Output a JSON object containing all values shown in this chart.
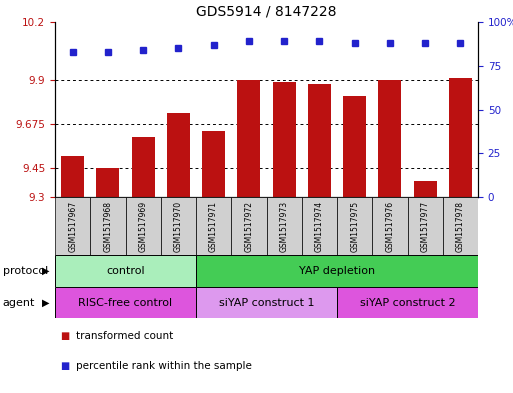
{
  "title": "GDS5914 / 8147228",
  "samples": [
    "GSM1517967",
    "GSM1517968",
    "GSM1517969",
    "GSM1517970",
    "GSM1517971",
    "GSM1517972",
    "GSM1517973",
    "GSM1517974",
    "GSM1517975",
    "GSM1517976",
    "GSM1517977",
    "GSM1517978"
  ],
  "bar_values": [
    9.51,
    9.45,
    9.61,
    9.73,
    9.64,
    9.9,
    9.89,
    9.88,
    9.82,
    9.9,
    9.38,
    9.91
  ],
  "dot_values": [
    83,
    83,
    84,
    85,
    87,
    89,
    89,
    89,
    88,
    88,
    88,
    88
  ],
  "ylim_left": [
    9.3,
    10.2
  ],
  "ylim_right": [
    0,
    100
  ],
  "yticks_left": [
    9.3,
    9.45,
    9.675,
    9.9,
    10.2
  ],
  "yticks_right": [
    0,
    25,
    50,
    75,
    100
  ],
  "ytick_labels_left": [
    "9.3",
    "9.45",
    "9.675",
    "9.9",
    "10.2"
  ],
  "ytick_labels_right": [
    "0",
    "25",
    "50",
    "75",
    "100%"
  ],
  "bar_color": "#bb1111",
  "dot_color": "#2222cc",
  "bg_color": "#d0d0d0",
  "protocol_groups": [
    {
      "label": "control",
      "start": 0,
      "end": 4,
      "color": "#aaeebb"
    },
    {
      "label": "YAP depletion",
      "start": 4,
      "end": 12,
      "color": "#44cc55"
    }
  ],
  "agent_groups": [
    {
      "label": "RISC-free control",
      "start": 0,
      "end": 4,
      "color": "#dd55dd"
    },
    {
      "label": "siYAP construct 1",
      "start": 4,
      "end": 8,
      "color": "#dd99ee"
    },
    {
      "label": "siYAP construct 2",
      "start": 8,
      "end": 12,
      "color": "#dd55dd"
    }
  ],
  "legend_items": [
    {
      "label": "transformed count",
      "color": "#bb1111"
    },
    {
      "label": "percentile rank within the sample",
      "color": "#2222cc"
    }
  ],
  "protocol_label": "protocol",
  "agent_label": "agent",
  "title_fontsize": 10,
  "tick_fontsize": 7.5,
  "sample_fontsize": 5.5,
  "annot_fontsize": 8
}
